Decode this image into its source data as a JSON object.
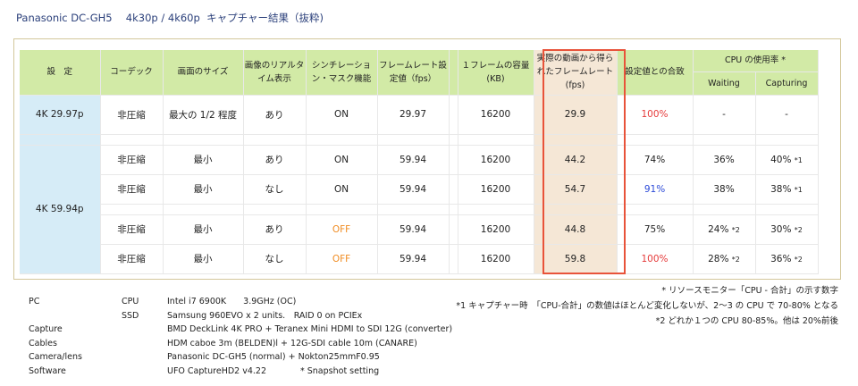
{
  "title": "Panasonic DC-GH5　 4k30p / 4k60p  キャプチャー結果（抜粋)",
  "headers": {
    "setting": "設　定",
    "codec": "コーデック",
    "size": "画面のサイズ",
    "realtime": "画像のリアルタイム表示",
    "sync": "シンチレーション・マスク機能",
    "framerate": "フレームレート設定値（fps）",
    "capacity": "１フレームの容量(KB)",
    "actual_1": "実際の動画から得ら",
    "actual_2": "れたフレームレート",
    "actual_3": "(fps)",
    "ratio": "設定値との合致",
    "cpu": "CPU の使用率 *",
    "waiting": "Waiting",
    "capturing": "Capturing"
  },
  "rows": [
    {
      "setting": "4K 29.97p",
      "codec": "非圧縮",
      "size": "最大の 1/2 程度",
      "realtime": "あり",
      "sync": "ON",
      "framerate": "29.97",
      "capacity": "16200",
      "actual": "29.9",
      "ratio": "100%",
      "waiting": "-",
      "capturing": "-",
      "cap_note": ""
    },
    {
      "setting": "4K 59.94p",
      "codec": "非圧縮",
      "size": "最小",
      "realtime": "あり",
      "sync": "ON",
      "framerate": "59.94",
      "capacity": "16200",
      "actual": "44.2",
      "ratio": "74%",
      "waiting": "36%",
      "waiting_note": "",
      "capturing": "40%",
      "cap_note": "*1"
    },
    {
      "codec": "非圧縮",
      "size": "最小",
      "realtime": "なし",
      "sync": "ON",
      "framerate": "59.94",
      "capacity": "16200",
      "actual": "54.7",
      "ratio": "91%",
      "waiting": "38%",
      "waiting_note": "",
      "capturing": "38%",
      "cap_note": "*1"
    },
    {
      "codec": "非圧縮",
      "size": "最小",
      "realtime": "あり",
      "sync": "OFF",
      "framerate": "59.94",
      "capacity": "16200",
      "actual": "44.8",
      "ratio": "75%",
      "waiting": "24%",
      "waiting_note": "*2",
      "capturing": "30%",
      "cap_note": "*2"
    },
    {
      "codec": "非圧縮",
      "size": "最小",
      "realtime": "なし",
      "sync": "OFF",
      "framerate": "59.94",
      "capacity": "16200",
      "actual": "59.8",
      "ratio": "100%",
      "waiting": "28%",
      "waiting_note": "*2",
      "capturing": "36%",
      "cap_note": "*2"
    }
  ],
  "notes": [
    "* リソースモニター「CPU - 合計」の示す数字",
    "*1 キャプチャー時　「CPU-合計」の数値はほとんど変化しないが、2～3 の CPU で 70-80% となる",
    "*2  どれか１つの CPU 80-85%。他は 20%前後"
  ],
  "specs": [
    {
      "key": "PC",
      "sub": "CPU",
      "value": "Intel i7 6900K　　3.9GHz (OC)"
    },
    {
      "key": "",
      "sub": "SSD",
      "value": "Samsung 960EVO x 2 units.　RAID 0 on PCIEx"
    },
    {
      "key": "Capture",
      "sub": "",
      "value": "BMD DeckLink 4K PRO + Teranex Mini HDMI to SDI 12G (converter)"
    },
    {
      "key": "Cables",
      "sub": "",
      "value": "HDM caboe 3m (BELDEN)l  + 12G-SDI cable 10m (CANARE)"
    },
    {
      "key": "Camera/lens",
      "sub": "",
      "value": "Panasonic DC-GH5 (normal) + Nokton25mmF0.95"
    },
    {
      "key": "Software",
      "sub": "",
      "value": "UFO CaptureHD2 v4.22　　　　* Snapshot setting"
    }
  ],
  "colors": {
    "header": "#d2eaa6",
    "setting": "#d6ecf7",
    "highlight": "#f5e7d6",
    "box": "#e8533a",
    "red": "#e53a3a",
    "blue": "#2c4ad8",
    "orange": "#f08c22"
  }
}
